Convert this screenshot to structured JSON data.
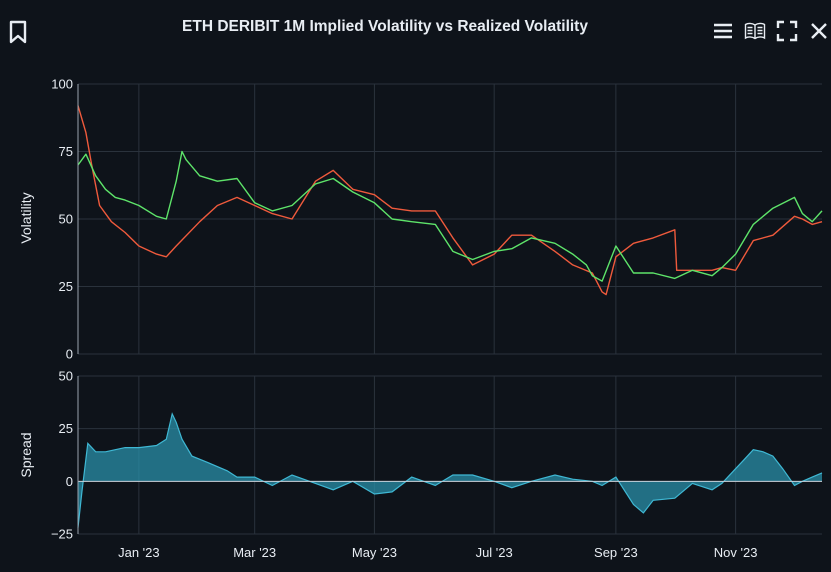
{
  "header": {
    "title": "ETH DERIBIT 1M Implied Volatility vs Realized Volatility"
  },
  "toolbar": {
    "bookmark_icon": "bookmark-icon",
    "menu_icon": "hamburger-menu-icon",
    "docs_icon": "open-book-icon",
    "fullscreen_icon": "fullscreen-icon",
    "close_icon": "close-icon"
  },
  "colors": {
    "background": "#0e131a",
    "grid": "#2a323c",
    "implied": "#5ee46a",
    "realized": "#ef5a3c",
    "spread_fill": "#2a8fa8",
    "spread_line": "#3fb8d4"
  },
  "chart_data": [
    {
      "type": "line",
      "ylabel": "Volatility",
      "ylim": [
        0,
        100
      ],
      "yticks": [
        0,
        25,
        50,
        75,
        100
      ],
      "xlim": [
        "2022-12-01",
        "2023-12-15"
      ],
      "xticks": [
        {
          "date": "2023-01-01",
          "label": "Jan '23"
        },
        {
          "date": "2023-03-01",
          "label": "Mar '23"
        },
        {
          "date": "2023-05-01",
          "label": "May '23"
        },
        {
          "date": "2023-07-01",
          "label": "Jul '23"
        },
        {
          "date": "2023-09-01",
          "label": "Sep '23"
        },
        {
          "date": "2023-11-01",
          "label": "Nov '23"
        }
      ],
      "series": [
        {
          "key": "implied",
          "x": [
            "2022-12-01",
            "2022-12-05",
            "2022-12-10",
            "2022-12-15",
            "2022-12-20",
            "2022-12-25",
            "2023-01-01",
            "2023-01-10",
            "2023-01-15",
            "2023-01-20",
            "2023-01-23",
            "2023-01-25",
            "2023-02-01",
            "2023-02-10",
            "2023-02-20",
            "2023-03-01",
            "2023-03-10",
            "2023-03-20",
            "2023-04-01",
            "2023-04-10",
            "2023-04-20",
            "2023-05-01",
            "2023-05-10",
            "2023-05-20",
            "2023-06-01",
            "2023-06-10",
            "2023-06-20",
            "2023-07-01",
            "2023-07-10",
            "2023-07-20",
            "2023-08-01",
            "2023-08-10",
            "2023-08-17",
            "2023-08-20",
            "2023-08-25",
            "2023-09-01",
            "2023-09-10",
            "2023-09-20",
            "2023-10-01",
            "2023-10-10",
            "2023-10-20",
            "2023-10-25",
            "2023-11-01",
            "2023-11-10",
            "2023-11-20",
            "2023-12-01",
            "2023-12-05",
            "2023-12-10",
            "2023-12-15"
          ],
          "y": [
            70,
            74,
            66,
            61,
            58,
            57,
            55,
            51,
            50,
            64,
            75,
            72,
            66,
            64,
            65,
            56,
            53,
            55,
            63,
            65,
            60,
            56,
            50,
            49,
            48,
            38,
            35,
            38,
            39,
            43,
            41,
            37,
            33,
            29,
            27,
            40,
            30,
            30,
            28,
            31,
            29,
            32,
            37,
            48,
            54,
            58,
            52,
            49,
            53
          ]
        },
        {
          "key": "realized",
          "x": [
            "2022-12-01",
            "2022-12-05",
            "2022-12-08",
            "2022-12-12",
            "2022-12-18",
            "2022-12-25",
            "2023-01-01",
            "2023-01-10",
            "2023-01-15",
            "2023-01-20",
            "2023-02-01",
            "2023-02-10",
            "2023-02-20",
            "2023-03-01",
            "2023-03-10",
            "2023-03-20",
            "2023-04-01",
            "2023-04-10",
            "2023-04-20",
            "2023-05-01",
            "2023-05-10",
            "2023-05-20",
            "2023-06-01",
            "2023-06-10",
            "2023-06-20",
            "2023-07-01",
            "2023-07-10",
            "2023-07-20",
            "2023-08-01",
            "2023-08-10",
            "2023-08-20",
            "2023-08-25",
            "2023-08-27",
            "2023-09-01",
            "2023-09-10",
            "2023-09-20",
            "2023-10-01",
            "2023-10-02",
            "2023-10-10",
            "2023-10-20",
            "2023-10-25",
            "2023-11-01",
            "2023-11-10",
            "2023-11-20",
            "2023-12-01",
            "2023-12-05",
            "2023-12-10",
            "2023-12-15"
          ],
          "y": [
            92,
            82,
            70,
            55,
            49,
            45,
            40,
            37,
            36,
            40,
            49,
            55,
            58,
            55,
            52,
            50,
            64,
            68,
            61,
            59,
            54,
            53,
            53,
            43,
            33,
            37,
            44,
            44,
            38,
            33,
            30,
            23,
            22,
            36,
            41,
            43,
            46,
            31,
            31,
            31,
            32,
            31,
            42,
            44,
            51,
            50,
            48,
            49
          ]
        }
      ]
    },
    {
      "type": "area",
      "ylabel": "Spread",
      "ylim": [
        -25,
        50
      ],
      "yticks": [
        -25,
        0,
        25,
        50
      ],
      "series": [
        {
          "key": "spread",
          "x": [
            "2022-12-01",
            "2022-12-03",
            "2022-12-06",
            "2022-12-10",
            "2022-12-15",
            "2022-12-20",
            "2022-12-25",
            "2023-01-01",
            "2023-01-10",
            "2023-01-15",
            "2023-01-18",
            "2023-01-20",
            "2023-01-23",
            "2023-01-28",
            "2023-02-05",
            "2023-02-15",
            "2023-02-20",
            "2023-03-01",
            "2023-03-10",
            "2023-03-20",
            "2023-04-01",
            "2023-04-10",
            "2023-04-20",
            "2023-05-01",
            "2023-05-10",
            "2023-05-20",
            "2023-06-01",
            "2023-06-10",
            "2023-06-20",
            "2023-07-01",
            "2023-07-10",
            "2023-07-20",
            "2023-08-01",
            "2023-08-10",
            "2023-08-20",
            "2023-08-25",
            "2023-09-01",
            "2023-09-10",
            "2023-09-15",
            "2023-09-20",
            "2023-10-01",
            "2023-10-10",
            "2023-10-20",
            "2023-10-25",
            "2023-11-01",
            "2023-11-05",
            "2023-11-10",
            "2023-11-15",
            "2023-11-20",
            "2023-11-25",
            "2023-12-01",
            "2023-12-05",
            "2023-12-10",
            "2023-12-15"
          ],
          "y": [
            -22,
            -5,
            18,
            14,
            14,
            15,
            16,
            16,
            17,
            20,
            32,
            28,
            20,
            12,
            9,
            5,
            2,
            2,
            -2,
            3,
            -1,
            -4,
            0,
            -6,
            -5,
            2,
            -2,
            3,
            3,
            0,
            -3,
            0,
            3,
            1,
            0,
            -2,
            2,
            -11,
            -15,
            -9,
            -8,
            -1,
            -4,
            -1,
            6,
            10,
            15,
            14,
            12,
            6,
            -2,
            0,
            2,
            4
          ]
        }
      ]
    }
  ]
}
